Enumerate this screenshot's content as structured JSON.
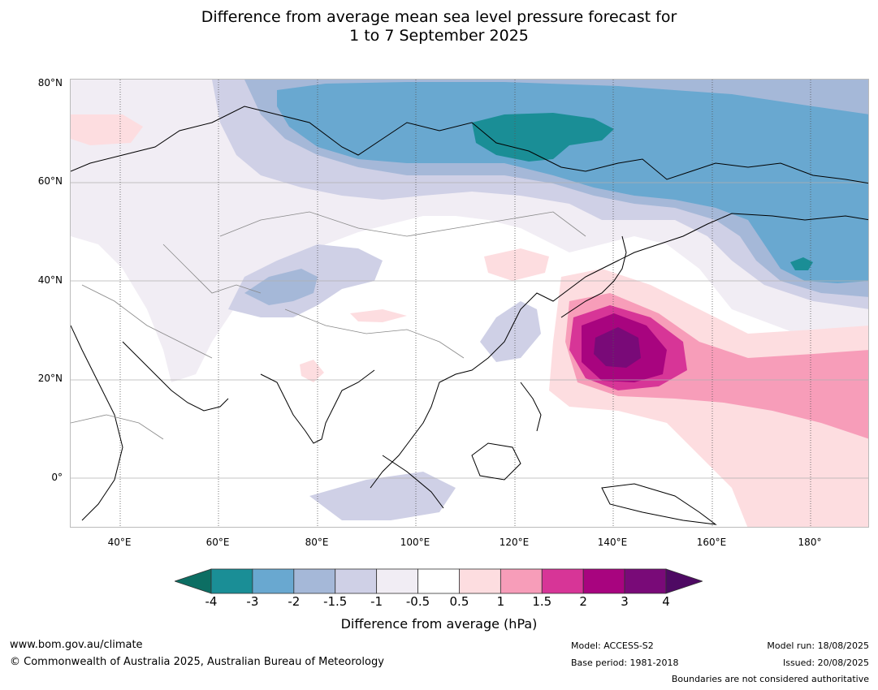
{
  "title_line1": "Difference from average mean sea level pressure forecast for",
  "title_line2": "1 to 7 September 2025",
  "lat_labels": [
    "80°N",
    "60°N",
    "40°N",
    "20°N",
    "0°"
  ],
  "lon_labels": [
    "40°E",
    "60°E",
    "80°E",
    "100°E",
    "120°E",
    "140°E",
    "160°E",
    "180°"
  ],
  "colorbar": {
    "ticks": [
      "-4",
      "-3",
      "-2",
      "-1.5",
      "-1",
      "-0.5",
      "0.5",
      "1",
      "1.5",
      "2",
      "3",
      "4"
    ],
    "colors": [
      "#1a8e96",
      "#69a8d0",
      "#a5b8d8",
      "#cfd0e6",
      "#f1edf4",
      "#ffffff",
      "#fddde0",
      "#f79db9",
      "#d73597",
      "#a8047f",
      "#790a78"
    ],
    "under_color": "#0c6e63",
    "over_color": "#4e0a63",
    "title": "Difference from average (hPa)"
  },
  "footer": {
    "url": "www.bom.gov.au/climate",
    "copyright": "© Commonwealth of Australia 2025, Australian Bureau of Meteorology",
    "model": "Model: ACCESS-S2",
    "base_period": "Base period: 1981-2018",
    "model_run": "Model run: 18/08/2025",
    "issued": "Issued: 20/08/2025",
    "disclaimer": "Boundaries are not considered authoritative"
  }
}
